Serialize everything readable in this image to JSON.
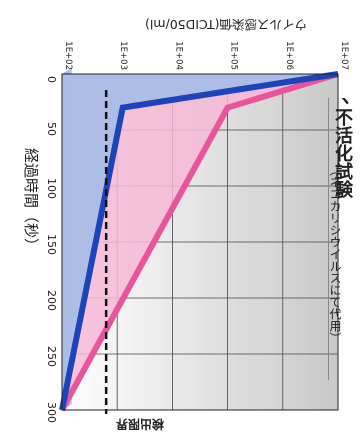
{
  "chart_data": {
    "type": "line",
    "title": "ヽ不活化試験",
    "subtitle": "（ネコカリシウイルスにて代用）",
    "xlabel": "経過時間（秒）",
    "ylabel": "ウイルス感染価(TCID50/ml)",
    "x_ticks": [
      "0",
      "50",
      "100",
      "150",
      "200",
      "250",
      "300"
    ],
    "y_ticks": [
      "1E+02",
      "1E+03",
      "1E+04",
      "1E+05",
      "1E+06",
      "1E+07"
    ],
    "xlim": [
      0,
      300
    ],
    "ylim_log10": [
      2,
      7
    ],
    "y_scale": "log",
    "detection_limit_label": "検出限界",
    "detection_limit_log10": 2.8,
    "series": [
      {
        "color": "#e8559a",
        "fill": "#f6b9d6",
        "x": [
          0,
          30,
          300
        ],
        "log10": [
          7.0,
          5.0,
          2.0
        ]
      },
      {
        "color": "#1d44b8",
        "fill": "#a9bde6",
        "x": [
          0,
          30,
          300
        ],
        "log10": [
          7.0,
          3.1,
          2.0
        ]
      }
    ],
    "grid": true
  }
}
